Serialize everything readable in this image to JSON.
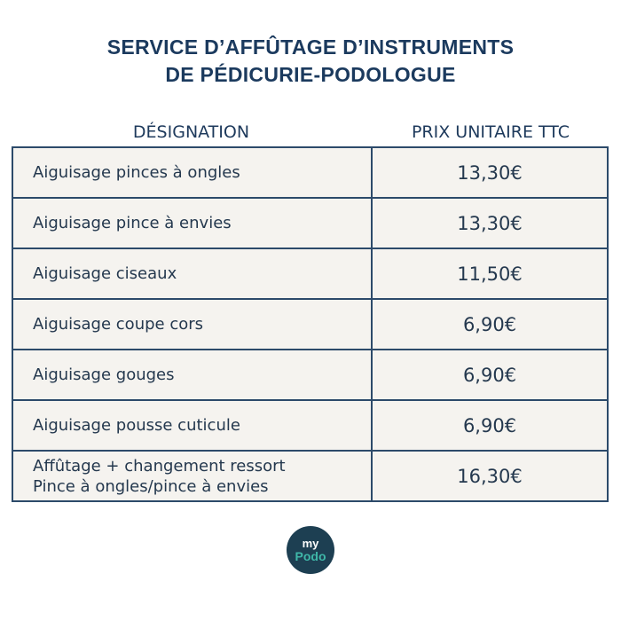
{
  "header": {
    "title": [
      "SERVICE D’AFFÛTAGE D’INSTRUMENTS",
      "DE PÉDICURIE-PODOLOGUE"
    ]
  },
  "table": {
    "columns": [
      "DÉSIGNATION",
      "PRIX UNITAIRE TTC"
    ],
    "rows": [
      {
        "designation": [
          "Aiguisage pinces à ongles"
        ],
        "price": "13,30€"
      },
      {
        "designation": [
          "Aiguisage pince à envies"
        ],
        "price": "13,30€"
      },
      {
        "designation": [
          "Aiguisage ciseaux"
        ],
        "price": "11,50€"
      },
      {
        "designation": [
          "Aiguisage coupe cors"
        ],
        "price": "6,90€"
      },
      {
        "designation": [
          "Aiguisage gouges"
        ],
        "price": "6,90€"
      },
      {
        "designation": [
          "Aiguisage pousse cuticule"
        ],
        "price": "6,90€"
      },
      {
        "designation": [
          "Affûtage + changement ressort",
          "Pince à ongles/pince à envies"
        ],
        "price": "16,30€"
      }
    ]
  },
  "logo": {
    "line1": "my",
    "line2": "Podo"
  }
}
